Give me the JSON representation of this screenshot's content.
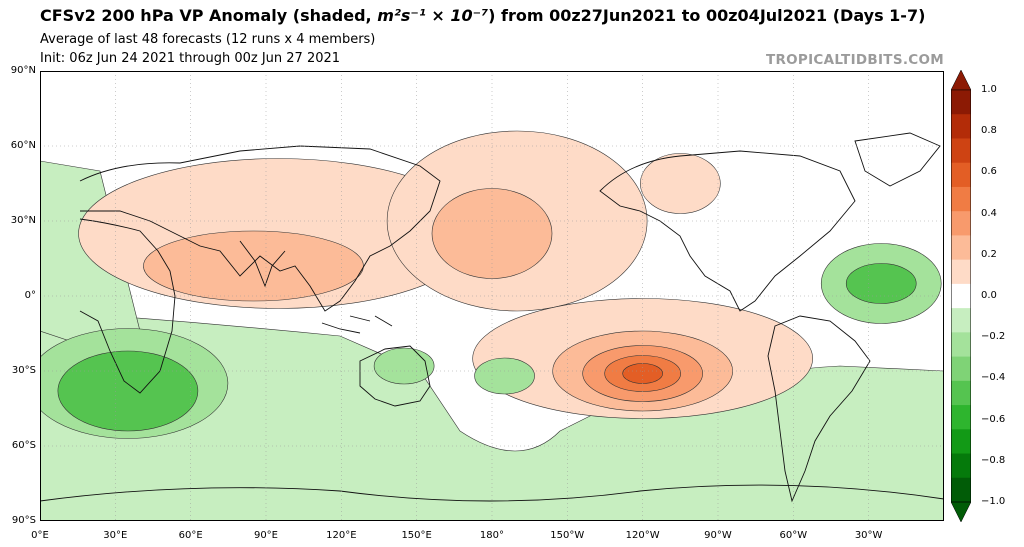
{
  "header": {
    "title_prefix": "CFSv2 200 hPa VP Anomaly (shaded, ",
    "title_math": "m²s⁻¹ × 10⁻⁷",
    "title_suffix": ") from 00z27Jun2021 to 00z04Jul2021 (Days 1-7)",
    "subtitle_1": "Average of last 48 forecasts (12 runs x 4 members)",
    "subtitle_2": "Init: 06z Jun 24 2021 through 00z Jun 27 2021",
    "brand": "TROPICALTIDBITS.COM"
  },
  "map": {
    "projection": "equirectangular",
    "lon_range": [
      0,
      360
    ],
    "lat_range": [
      -90,
      90
    ],
    "lat_ticks": [
      "90°N",
      "60°N",
      "30°N",
      "0°",
      "30°S",
      "60°S",
      "90°S"
    ],
    "lon_ticks": [
      "0°E",
      "30°E",
      "60°E",
      "90°E",
      "120°E",
      "150°E",
      "180°",
      "150°W",
      "120°W",
      "90°W",
      "60°W",
      "30°W"
    ],
    "colors": {
      "positive": [
        "#fedbc7",
        "#fcbb98",
        "#f89a6c",
        "#f07c44",
        "#e35e25",
        "#ce4313",
        "#b32c08",
        "#8c1a04"
      ],
      "negative": [
        "#c7eec0",
        "#a4e29b",
        "#7fd376",
        "#55c450",
        "#2eb52e",
        "#129a16",
        "#057a0b",
        "#015c07"
      ]
    },
    "anomaly_regions": [
      {
        "name": "eurasia-high",
        "lon": 100,
        "lat": 25,
        "level": 0.2
      },
      {
        "name": "south-asia-high",
        "lon": 90,
        "lat": 12,
        "level": 0.3
      },
      {
        "name": "north-pacific-high",
        "lon": 180,
        "lat": 25,
        "level": 0.2
      },
      {
        "name": "central-pacific-high",
        "lon": 200,
        "lat": 20,
        "level": 0.3
      },
      {
        "name": "southeast-pacific-high",
        "lon": 240,
        "lat": -30,
        "level": 0.7
      },
      {
        "name": "south-america-high",
        "lon": 300,
        "lat": -25,
        "level": 0.2
      },
      {
        "name": "north-america-high",
        "lon": 255,
        "lat": 40,
        "level": 0.2
      },
      {
        "name": "indian-ocean-low",
        "lon": 40,
        "lat": -35,
        "level": -0.5
      },
      {
        "name": "atlantic-low",
        "lon": 330,
        "lat": 5,
        "level": -0.5
      },
      {
        "name": "tasman-low",
        "lon": 150,
        "lat": -25,
        "level": -0.3
      }
    ]
  },
  "colorbar": {
    "labels": [
      "1.0",
      "0.8",
      "0.6",
      "0.4",
      "0.2",
      "0.0",
      "−0.2",
      "−0.4",
      "−0.6",
      "−0.8",
      "−1.0"
    ]
  }
}
